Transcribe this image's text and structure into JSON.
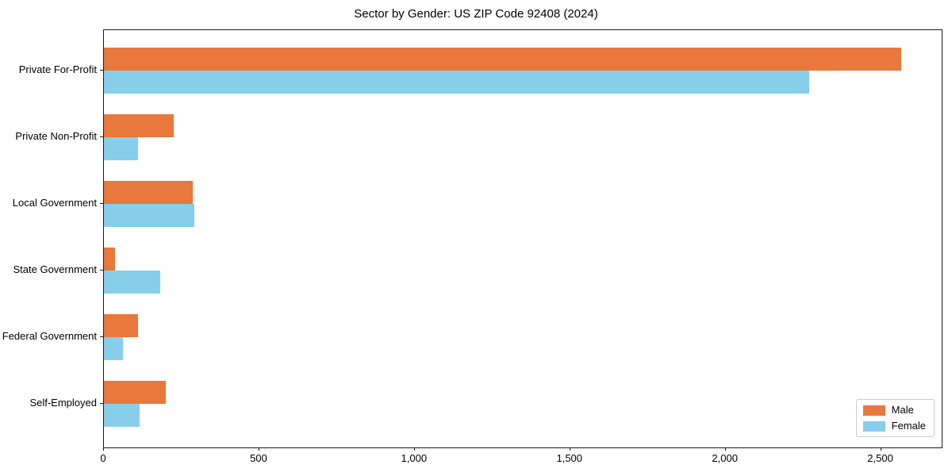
{
  "chart_data": {
    "type": "bar",
    "orientation": "horizontal",
    "title": "Sector by Gender: US ZIP Code 92408 (2024)",
    "categories": [
      "Private For-Profit",
      "Private Non-Profit",
      "Local Government",
      "State Government",
      "Federal Government",
      "Self-Employed"
    ],
    "series": [
      {
        "name": "Male",
        "color": "#E8783C",
        "values": [
          2565,
          225,
          285,
          35,
          110,
          200
        ]
      },
      {
        "name": "Female",
        "color": "#87CEEB",
        "values": [
          2270,
          110,
          290,
          180,
          60,
          115
        ]
      }
    ],
    "xlabel": "",
    "ylabel": "",
    "xlim": [
      0,
      2695
    ],
    "xticks": [
      0,
      500,
      1000,
      1500,
      2000,
      2500
    ],
    "xtick_labels": [
      "0",
      "500",
      "1,000",
      "1,500",
      "2,000",
      "2,500"
    ],
    "grid": false,
    "legend": {
      "position": "lower right",
      "entries": [
        "Male",
        "Female"
      ]
    }
  }
}
